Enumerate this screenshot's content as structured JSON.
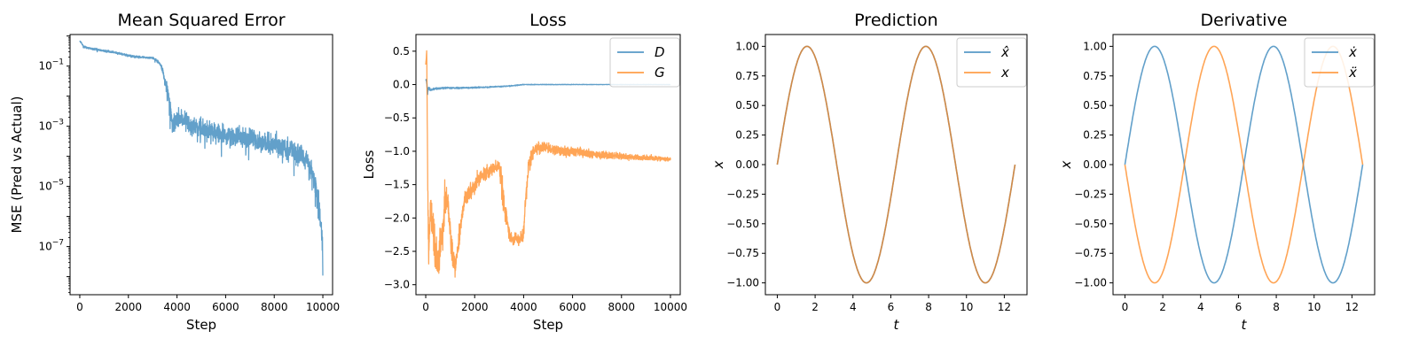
{
  "colors": {
    "blue": "#1f77b4",
    "orange": "#ff7f0e"
  },
  "chart_data": [
    {
      "id": "mse",
      "type": "line",
      "title": "Mean Squared Error",
      "xlabel": "Step",
      "ylabel": "MSE (Pred vs Actual)",
      "yscale": "log",
      "xlim": [
        -400,
        10400
      ],
      "ylim_exp": [
        -8.6,
        0.05
      ],
      "xticks": [
        0,
        2000,
        4000,
        6000,
        8000,
        10000
      ],
      "xtick_labels": [
        "0",
        "2000",
        "4000",
        "6000",
        "8000",
        "10000"
      ],
      "yticks_exp": [
        -1,
        -3,
        -5,
        -7
      ],
      "ytick_base": "10",
      "ytick_exponents": [
        "−1",
        "−3",
        "−5",
        "−7"
      ],
      "legend": "none",
      "grid": false,
      "series": [
        {
          "color": "blue",
          "x": [
            0,
            150,
            300,
            600,
            1000,
            1500,
            2000,
            2500,
            3000,
            3300,
            3500,
            3700,
            3800,
            4000,
            4500,
            5000,
            5500,
            6000,
            6500,
            7000,
            7500,
            8000,
            8500,
            9000,
            9300,
            9500,
            9700,
            9800,
            9900,
            10000
          ],
          "y": [
            0.7,
            0.45,
            0.4,
            0.37,
            0.32,
            0.28,
            0.22,
            0.2,
            0.19,
            0.12,
            0.03,
            0.004,
            0.0009,
            0.002,
            0.0012,
            0.0009,
            0.0006,
            0.0005,
            0.00045,
            0.0004,
            0.0003,
            0.00025,
            0.00018,
            0.00012,
            8e-05,
            4e-05,
            1e-05,
            3e-06,
            6e-07,
            2e-08
          ],
          "noise_dec": [
            0.02,
            0.06,
            0.06,
            0.06,
            0.06,
            0.06,
            0.06,
            0.06,
            0.06,
            0.1,
            0.25,
            0.55,
            0.6,
            0.6,
            0.55,
            0.55,
            0.55,
            0.55,
            0.55,
            0.55,
            0.55,
            0.55,
            0.55,
            0.6,
            0.6,
            0.65,
            0.7,
            0.75,
            0.8,
            0.9
          ]
        }
      ]
    },
    {
      "id": "loss",
      "type": "line",
      "title": "Loss",
      "xlabel": "Step",
      "ylabel": "Loss",
      "xlim": [
        -400,
        10400
      ],
      "ylim": [
        -3.15,
        0.75
      ],
      "xticks": [
        0,
        2000,
        4000,
        6000,
        8000,
        10000
      ],
      "xtick_labels": [
        "0",
        "2000",
        "4000",
        "6000",
        "8000",
        "10000"
      ],
      "yticks": [
        0.5,
        0.0,
        -0.5,
        -1.0,
        -1.5,
        -2.0,
        -2.5,
        -3.0
      ],
      "ytick_labels": [
        "0.5",
        "0.0",
        "−0.5",
        "−1.0",
        "−1.5",
        "−2.0",
        "−2.5",
        "−3.0"
      ],
      "legend": "top-right",
      "grid": false,
      "series": [
        {
          "name": "D",
          "color": "blue",
          "x": [
            0,
            30,
            80,
            120,
            200,
            400,
            800,
            1500,
            2500,
            3500,
            4000,
            5000,
            7000,
            10000
          ],
          "y": [
            0.08,
            0.05,
            -0.12,
            -0.05,
            -0.08,
            -0.06,
            -0.05,
            -0.05,
            -0.04,
            -0.02,
            0.0,
            0.0,
            0.0,
            0.0
          ],
          "noise": [
            0.01,
            0.05,
            0.05,
            0.03,
            0.02,
            0.015,
            0.015,
            0.012,
            0.01,
            0.008,
            0.006,
            0.004,
            0.003,
            0.003
          ]
        },
        {
          "name": "G",
          "color": "orange",
          "x": [
            0,
            40,
            80,
            120,
            160,
            200,
            300,
            400,
            500,
            600,
            700,
            800,
            900,
            1000,
            1100,
            1200,
            1300,
            1400,
            1500,
            1600,
            1800,
            2000,
            2200,
            2400,
            2600,
            2800,
            3000,
            3100,
            3200,
            3300,
            3400,
            3500,
            3600,
            3700,
            3800,
            3900,
            4000,
            4100,
            4200,
            4400,
            4600,
            5000,
            5500,
            6000,
            7000,
            8000,
            9000,
            10000
          ],
          "y": [
            0.3,
            0.5,
            -1.4,
            -2.6,
            -2.2,
            -1.8,
            -2.2,
            -2.5,
            -2.6,
            -2.4,
            -2.1,
            -1.7,
            -1.8,
            -2.2,
            -2.6,
            -2.7,
            -2.5,
            -2.2,
            -1.9,
            -1.7,
            -1.6,
            -1.5,
            -1.4,
            -1.35,
            -1.3,
            -1.25,
            -1.2,
            -1.5,
            -1.8,
            -2.0,
            -2.2,
            -2.3,
            -2.35,
            -2.3,
            -2.35,
            -2.3,
            -2.2,
            -1.7,
            -1.2,
            -1.0,
            -0.95,
            -0.95,
            -1.0,
            -1.0,
            -1.05,
            -1.08,
            -1.1,
            -1.12
          ],
          "noise": [
            0.05,
            0.05,
            0.2,
            0.3,
            0.3,
            0.3,
            0.3,
            0.3,
            0.3,
            0.3,
            0.3,
            0.3,
            0.2,
            0.2,
            0.2,
            0.15,
            0.15,
            0.15,
            0.12,
            0.12,
            0.12,
            0.12,
            0.1,
            0.1,
            0.1,
            0.1,
            0.1,
            0.2,
            0.2,
            0.15,
            0.1,
            0.1,
            0.1,
            0.1,
            0.1,
            0.1,
            0.15,
            0.2,
            0.15,
            0.1,
            0.1,
            0.08,
            0.08,
            0.07,
            0.06,
            0.05,
            0.04,
            0.03
          ]
        }
      ]
    },
    {
      "id": "prediction",
      "type": "line",
      "title": "Prediction",
      "xlabel": "t",
      "ylabel": "x",
      "xlim": [
        -0.63,
        13.2
      ],
      "ylim": [
        -1.1,
        1.1
      ],
      "xticks": [
        0,
        2,
        4,
        6,
        8,
        10,
        12
      ],
      "xtick_labels": [
        "0",
        "2",
        "4",
        "6",
        "8",
        "10",
        "12"
      ],
      "yticks": [
        1.0,
        0.75,
        0.5,
        0.25,
        0.0,
        -0.25,
        -0.5,
        -0.75,
        -1.0
      ],
      "ytick_labels": [
        "1.00",
        "0.75",
        "0.50",
        "0.25",
        "0.00",
        "−0.25",
        "−0.50",
        "−0.75",
        "−1.00"
      ],
      "legend": "top-right",
      "grid": false,
      "series": [
        {
          "name": "x̂",
          "color": "blue",
          "function": "sin",
          "t_range": [
            0,
            12.566
          ]
        },
        {
          "name": "x",
          "color": "orange",
          "function": "sin",
          "t_range": [
            0,
            12.566
          ]
        }
      ]
    },
    {
      "id": "derivative",
      "type": "line",
      "title": "Derivative",
      "xlabel": "t",
      "ylabel": "x",
      "xlim": [
        -0.63,
        13.2
      ],
      "ylim": [
        -1.1,
        1.1
      ],
      "xticks": [
        0,
        2,
        4,
        6,
        8,
        10,
        12
      ],
      "xtick_labels": [
        "0",
        "2",
        "4",
        "6",
        "8",
        "10",
        "12"
      ],
      "yticks": [
        1.0,
        0.75,
        0.5,
        0.25,
        0.0,
        -0.25,
        -0.5,
        -0.75,
        -1.0
      ],
      "ytick_labels": [
        "1.00",
        "0.75",
        "0.50",
        "0.25",
        "0.00",
        "−0.25",
        "−0.50",
        "−0.75",
        "−1.00"
      ],
      "legend": "top-right",
      "grid": false,
      "series": [
        {
          "name": "ẋ",
          "color": "blue",
          "function": "sin",
          "t_range": [
            0,
            12.566
          ]
        },
        {
          "name": "ẍ",
          "color": "orange",
          "function": "-sin",
          "t_range": [
            0,
            12.566
          ]
        }
      ]
    }
  ]
}
